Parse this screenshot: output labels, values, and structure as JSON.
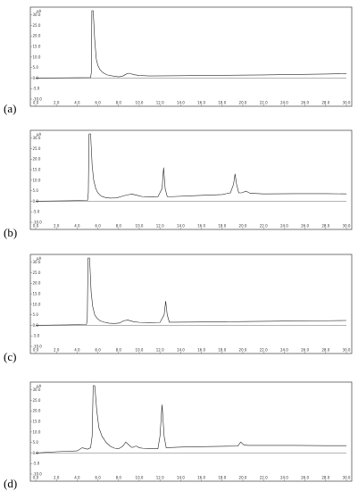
{
  "chart_data": [
    {
      "type": "line",
      "panel_label": "(a)",
      "unit": "pA",
      "xlim": [
        0,
        30
      ],
      "ylim": [
        -10,
        32
      ],
      "xticks": [
        "0.0",
        "2.0",
        "4.0",
        "6.0",
        "8.0",
        "10.0",
        "12.0",
        "14.0",
        "16.0",
        "18.0",
        "20.0",
        "22.0",
        "24.0",
        "26.0",
        "28.0",
        "30.0"
      ],
      "yticks": [
        "-10.0",
        "-5.0",
        "0.0",
        "5.0",
        "10.0",
        "15.0",
        "20.0",
        "25.0",
        "30.0"
      ],
      "series": [
        {
          "x": [
            0,
            3,
            5.3,
            5.38,
            5.42,
            5.55,
            5.7,
            5.85,
            6.0,
            6.2,
            6.5,
            6.9,
            7.4,
            8.0,
            8.4,
            8.7,
            9.0,
            9.5,
            10,
            11,
            14,
            18,
            22,
            25,
            28,
            30
          ],
          "y": [
            0,
            0.1,
            0.2,
            3,
            32,
            32,
            18,
            9,
            6,
            4,
            2.5,
            1.5,
            1.0,
            0.6,
            0.9,
            1.8,
            2.3,
            1.6,
            1.2,
            1.0,
            1.1,
            1.3,
            1.5,
            1.7,
            1.9,
            2.1
          ]
        }
      ]
    },
    {
      "type": "line",
      "panel_label": "(b)",
      "unit": "pA",
      "xlim": [
        0,
        30
      ],
      "ylim": [
        -10,
        32
      ],
      "xticks": [
        "0.0",
        "2.0",
        "4.0",
        "6.0",
        "8.0",
        "10.0",
        "12.0",
        "14.0",
        "16.0",
        "18.0",
        "20.0",
        "22.0",
        "24.0",
        "26.0",
        "28.0",
        "30.0"
      ],
      "yticks": [
        "-10.0",
        "-5.0",
        "0.0",
        "5.0",
        "10.0",
        "15.0",
        "20.0",
        "25.0",
        "30.0"
      ],
      "series": [
        {
          "x": [
            0,
            3,
            5.0,
            5.08,
            5.15,
            5.3,
            5.45,
            5.6,
            5.8,
            6.0,
            6.3,
            6.7,
            7.2,
            7.8,
            8.3,
            8.8,
            9.3,
            9.8,
            10.3,
            11.0,
            11.8,
            12.2,
            12.35,
            12.5,
            12.7,
            13.2,
            15,
            18,
            18.8,
            19.1,
            19.25,
            19.4,
            19.6,
            19.9,
            20.3,
            20.7,
            22,
            25,
            28,
            30
          ],
          "y": [
            0,
            0.2,
            0.4,
            4,
            32,
            32,
            17,
            10,
            6,
            4,
            2.5,
            1.8,
            1.5,
            1.6,
            2.3,
            3.0,
            3.4,
            2.8,
            2.2,
            2.0,
            2.1,
            6,
            16,
            6,
            2.2,
            2.2,
            2.6,
            3.2,
            4,
            8,
            13,
            8,
            4,
            4,
            4.8,
            3.8,
            3.5,
            3.6,
            3.6,
            3.5
          ]
        }
      ]
    },
    {
      "type": "line",
      "panel_label": "(c)",
      "unit": "pA",
      "xlim": [
        0,
        30
      ],
      "ylim": [
        -10,
        32
      ],
      "xticks": [
        "0.0",
        "2.0",
        "4.0",
        "6.0",
        "8.0",
        "10.0",
        "12.0",
        "14.0",
        "16.0",
        "18.0",
        "20.0",
        "22.0",
        "24.0",
        "26.0",
        "28.0",
        "30.0"
      ],
      "yticks": [
        "-10.0",
        "-5.0",
        "0.0",
        "5.0",
        "10.0",
        "15.0",
        "20.0",
        "25.0",
        "30.0"
      ],
      "series": [
        {
          "x": [
            0,
            3,
            4.9,
            4.98,
            5.05,
            5.2,
            5.35,
            5.5,
            5.7,
            5.9,
            6.2,
            6.6,
            7.1,
            7.6,
            8.1,
            8.5,
            8.9,
            9.4,
            10.0,
            11.0,
            12.0,
            12.4,
            12.55,
            12.7,
            12.9,
            13.4,
            16,
            20,
            24,
            28,
            30
          ],
          "y": [
            0,
            0.2,
            0.4,
            3,
            32,
            32,
            16,
            9,
            5,
            3.5,
            2.2,
            1.5,
            1.0,
            0.9,
            1.1,
            2.2,
            2.5,
            1.8,
            1.4,
            1.3,
            1.4,
            5,
            11.5,
            5,
            1.5,
            1.5,
            1.6,
            1.8,
            2.0,
            2.2,
            2.3
          ]
        }
      ]
    },
    {
      "type": "line",
      "panel_label": "(d)",
      "unit": "pA",
      "xlim": [
        0,
        30
      ],
      "ylim": [
        -10,
        32
      ],
      "xticks": [
        "0.0",
        "2.0",
        "4.0",
        "6.0",
        "8.0",
        "10.0",
        "12.0",
        "14.0",
        "16.0",
        "18.0",
        "20.0",
        "22.0",
        "24.0",
        "26.0",
        "28.0",
        "30.0"
      ],
      "yticks": [
        "-10.0",
        "-5.0",
        "0.0",
        "5.0",
        "10.0",
        "15.0",
        "20.0",
        "25.0",
        "30.0"
      ],
      "series": [
        {
          "x": [
            0,
            2,
            4,
            4.5,
            5.0,
            5.3,
            5.45,
            5.55,
            5.7,
            5.9,
            6.1,
            6.4,
            6.8,
            7.2,
            7.6,
            8.0,
            8.4,
            8.7,
            9.0,
            9.3,
            9.7,
            10.0,
            10.4,
            11.0,
            11.8,
            12.0,
            12.2,
            12.4,
            12.6,
            13.0,
            14,
            16,
            18,
            19.5,
            19.8,
            20.1,
            20.5,
            22,
            25,
            28,
            30
          ],
          "y": [
            0,
            0.6,
            1.0,
            2.5,
            1.8,
            2.5,
            8,
            32,
            32,
            20,
            12,
            8,
            5,
            3.2,
            2.3,
            2.0,
            3.2,
            5.2,
            3.8,
            2.6,
            3.3,
            2.5,
            2.2,
            2.0,
            2.0,
            8,
            23,
            8,
            2.5,
            2.6,
            2.8,
            3.0,
            3.2,
            3.3,
            5.2,
            3.8,
            3.6,
            3.6,
            3.6,
            3.5,
            3.5
          ]
        }
      ]
    }
  ]
}
